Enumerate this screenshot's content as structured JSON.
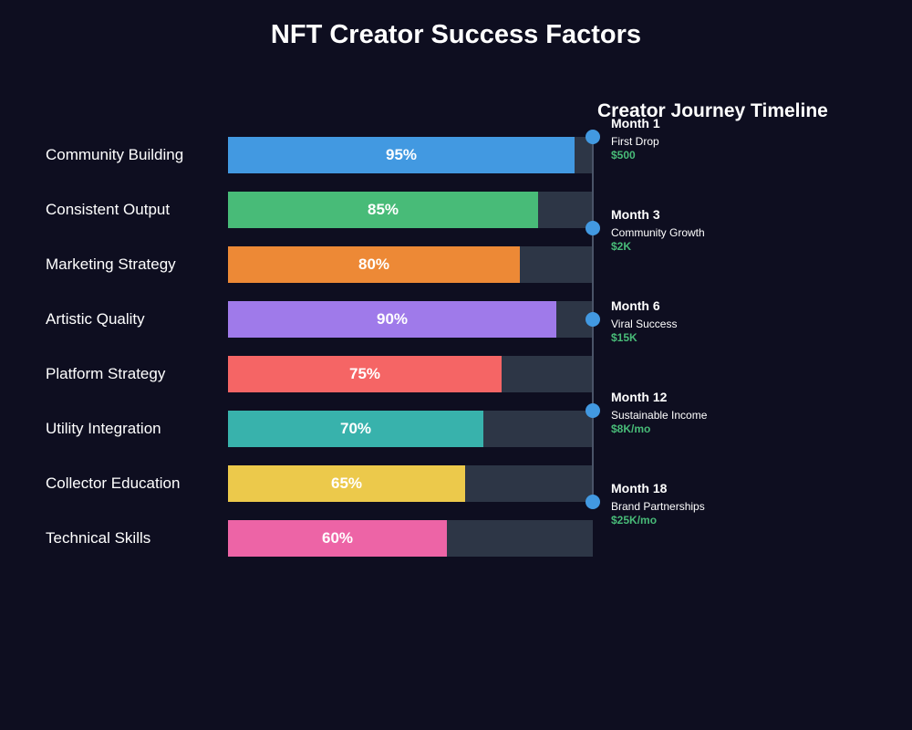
{
  "title": "NFT Creator Success Factors",
  "chart_data": [
    {
      "type": "bar",
      "orientation": "horizontal",
      "categories": [
        "Community Building",
        "Consistent Output",
        "Marketing Strategy",
        "Artistic Quality",
        "Platform Strategy",
        "Utility Integration",
        "Collector Education",
        "Technical Skills"
      ],
      "values": [
        95,
        85,
        80,
        90,
        75,
        70,
        65,
        60
      ],
      "value_labels": [
        "95%",
        "85%",
        "80%",
        "90%",
        "75%",
        "70%",
        "65%",
        "60%"
      ],
      "colors": [
        "#4299e1",
        "#48bb78",
        "#ed8936",
        "#9f7aea",
        "#f56565",
        "#38b2ac",
        "#ecc94b",
        "#ed64a6"
      ],
      "track_color": "#2d3646",
      "xlim": [
        0,
        100
      ]
    },
    {
      "type": "timeline",
      "title": "Creator Journey Timeline",
      "milestones": [
        {
          "month": "Month 1",
          "event": "First Drop",
          "value": "$500"
        },
        {
          "month": "Month 3",
          "event": "Community Growth",
          "value": "$2K"
        },
        {
          "month": "Month 6",
          "event": "Viral Success",
          "value": "$15K"
        },
        {
          "month": "Month 12",
          "event": "Sustainable Income",
          "value": "$8K/mo"
        },
        {
          "month": "Month 18",
          "event": "Brand Partnerships",
          "value": "$25K/mo"
        }
      ],
      "dot_color": "#4299e1",
      "value_color": "#48bb78"
    }
  ]
}
